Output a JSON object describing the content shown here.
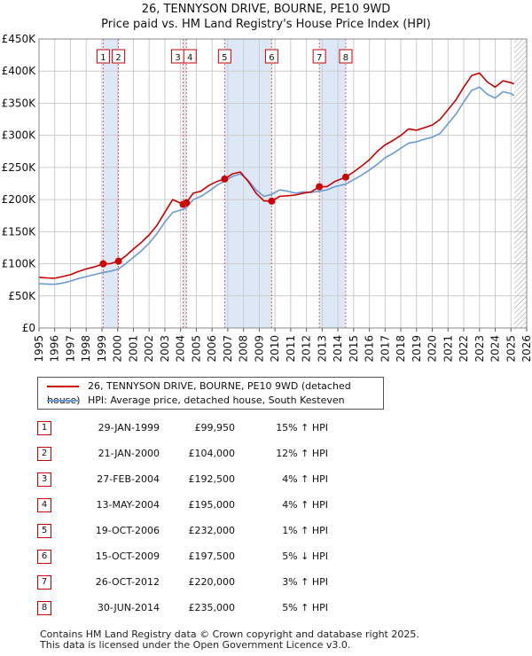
{
  "title_line1": "26, TENNYSON DRIVE, BOURNE, PE10 9WD",
  "title_line2": "Price paid vs. HM Land Registry's House Price Index (HPI)",
  "chart_data": {
    "type": "line",
    "yticks": [
      "£0",
      "£50K",
      "£100K",
      "£150K",
      "£200K",
      "£250K",
      "£300K",
      "£350K",
      "£400K",
      "£450K"
    ],
    "xticks": [
      "1995",
      "1996",
      "1997",
      "1998",
      "1999",
      "2000",
      "2001",
      "2002",
      "2003",
      "2004",
      "2005",
      "2006",
      "2007",
      "2008",
      "2009",
      "2010",
      "2011",
      "2012",
      "2013",
      "2014",
      "2015",
      "2016",
      "2017",
      "2018",
      "2019",
      "2020",
      "2021",
      "2022",
      "2023",
      "2024",
      "2025",
      "2026"
    ],
    "xlim": [
      1995,
      2026
    ],
    "ylim": [
      0,
      450000
    ],
    "colors": {
      "property": "#cc0000",
      "hpi": "#6a9bd4",
      "shade": "#dde8f7",
      "grid": "#cccccc"
    },
    "series": [
      {
        "name": "26, TENNYSON DRIVE, BOURNE, PE10 9WD (detached house)",
        "points": [
          [
            1995.0,
            79000
          ],
          [
            1995.5,
            78000
          ],
          [
            1996.0,
            77500
          ],
          [
            1996.5,
            80000
          ],
          [
            1997.0,
            83000
          ],
          [
            1997.5,
            88000
          ],
          [
            1998.0,
            92000
          ],
          [
            1998.5,
            95000
          ],
          [
            1999.08,
            99950
          ],
          [
            1999.5,
            100000
          ],
          [
            2000.05,
            104000
          ],
          [
            2000.5,
            112000
          ],
          [
            2001.0,
            123000
          ],
          [
            2001.5,
            133000
          ],
          [
            2002.0,
            145000
          ],
          [
            2002.5,
            160000
          ],
          [
            2003.0,
            180000
          ],
          [
            2003.5,
            200000
          ],
          [
            2004.16,
            192500
          ],
          [
            2004.37,
            195000
          ],
          [
            2004.8,
            210000
          ],
          [
            2005.3,
            213000
          ],
          [
            2005.8,
            222000
          ],
          [
            2006.3,
            228000
          ],
          [
            2006.8,
            232000
          ],
          [
            2007.3,
            240000
          ],
          [
            2007.8,
            243000
          ],
          [
            2008.3,
            228000
          ],
          [
            2008.8,
            210000
          ],
          [
            2009.3,
            198000
          ],
          [
            2009.79,
            197500
          ],
          [
            2010.3,
            205000
          ],
          [
            2010.8,
            206000
          ],
          [
            2011.3,
            207000
          ],
          [
            2011.8,
            210000
          ],
          [
            2012.3,
            212000
          ],
          [
            2012.82,
            220000
          ],
          [
            2013.3,
            220000
          ],
          [
            2013.8,
            228000
          ],
          [
            2014.5,
            235000
          ],
          [
            2015.0,
            243000
          ],
          [
            2015.5,
            252000
          ],
          [
            2016.0,
            262000
          ],
          [
            2016.5,
            275000
          ],
          [
            2017.0,
            285000
          ],
          [
            2017.5,
            292000
          ],
          [
            2018.0,
            300000
          ],
          [
            2018.5,
            310000
          ],
          [
            2019.0,
            308000
          ],
          [
            2019.5,
            312000
          ],
          [
            2020.0,
            316000
          ],
          [
            2020.5,
            325000
          ],
          [
            2021.0,
            340000
          ],
          [
            2021.5,
            355000
          ],
          [
            2022.0,
            375000
          ],
          [
            2022.5,
            393000
          ],
          [
            2023.0,
            397000
          ],
          [
            2023.5,
            383000
          ],
          [
            2024.0,
            375000
          ],
          [
            2024.5,
            385000
          ],
          [
            2025.0,
            382000
          ],
          [
            2025.2,
            380000
          ]
        ]
      },
      {
        "name": "HPI: Average price, detached house, South Kesteven",
        "points": [
          [
            1995.0,
            69000
          ],
          [
            1995.5,
            68500
          ],
          [
            1996.0,
            68000
          ],
          [
            1996.5,
            70000
          ],
          [
            1997.0,
            73000
          ],
          [
            1997.5,
            77000
          ],
          [
            1998.0,
            80000
          ],
          [
            1998.5,
            83000
          ],
          [
            1999.08,
            86500
          ],
          [
            1999.5,
            88000
          ],
          [
            2000.05,
            92000
          ],
          [
            2000.5,
            100000
          ],
          [
            2001.0,
            110000
          ],
          [
            2001.5,
            120000
          ],
          [
            2002.0,
            132000
          ],
          [
            2002.5,
            147000
          ],
          [
            2003.0,
            165000
          ],
          [
            2003.5,
            180000
          ],
          [
            2004.16,
            185000
          ],
          [
            2004.37,
            187000
          ],
          [
            2004.8,
            200000
          ],
          [
            2005.3,
            205000
          ],
          [
            2005.8,
            213000
          ],
          [
            2006.3,
            222000
          ],
          [
            2006.8,
            229000
          ],
          [
            2007.3,
            236000
          ],
          [
            2007.8,
            240000
          ],
          [
            2008.3,
            230000
          ],
          [
            2008.8,
            215000
          ],
          [
            2009.3,
            205000
          ],
          [
            2009.79,
            208000
          ],
          [
            2010.3,
            215000
          ],
          [
            2010.8,
            213000
          ],
          [
            2011.3,
            210000
          ],
          [
            2011.8,
            212000
          ],
          [
            2012.3,
            211000
          ],
          [
            2012.82,
            213000
          ],
          [
            2013.3,
            215000
          ],
          [
            2013.8,
            220000
          ],
          [
            2014.5,
            224000
          ],
          [
            2015.0,
            231000
          ],
          [
            2015.5,
            238000
          ],
          [
            2016.0,
            246000
          ],
          [
            2016.5,
            255000
          ],
          [
            2017.0,
            265000
          ],
          [
            2017.5,
            272000
          ],
          [
            2018.0,
            280000
          ],
          [
            2018.5,
            288000
          ],
          [
            2019.0,
            290000
          ],
          [
            2019.5,
            294000
          ],
          [
            2020.0,
            297000
          ],
          [
            2020.5,
            303000
          ],
          [
            2021.0,
            318000
          ],
          [
            2021.5,
            333000
          ],
          [
            2022.0,
            352000
          ],
          [
            2022.5,
            370000
          ],
          [
            2023.0,
            375000
          ],
          [
            2023.5,
            364000
          ],
          [
            2024.0,
            358000
          ],
          [
            2024.5,
            368000
          ],
          [
            2025.0,
            365000
          ],
          [
            2025.2,
            362000
          ]
        ]
      }
    ],
    "sales": [
      {
        "n": "1",
        "x": 1999.08,
        "price": 99950
      },
      {
        "n": "2",
        "x": 2000.05,
        "price": 104000
      },
      {
        "n": "3",
        "x": 2004.16,
        "price": 192500
      },
      {
        "n": "4",
        "x": 2004.37,
        "price": 195000
      },
      {
        "n": "5",
        "x": 2006.8,
        "price": 232000
      },
      {
        "n": "6",
        "x": 2009.79,
        "price": 197500
      },
      {
        "n": "7",
        "x": 2012.82,
        "price": 220000
      },
      {
        "n": "8",
        "x": 2014.5,
        "price": 235000
      }
    ],
    "shaded_ranges": [
      [
        1999.08,
        2000.05
      ],
      [
        2004.16,
        2004.37
      ],
      [
        2006.8,
        2009.79
      ],
      [
        2012.82,
        2014.5
      ]
    ],
    "hatched_from": 2025.2
  },
  "legend": {
    "property_label": "26, TENNYSON DRIVE, BOURNE, PE10 9WD (detached house)",
    "hpi_label": "HPI: Average price, detached house, South Kesteven"
  },
  "sales_table": [
    {
      "n": "1",
      "date": "29-JAN-1999",
      "price": "£99,950",
      "hpi": "15% ↑ HPI"
    },
    {
      "n": "2",
      "date": "21-JAN-2000",
      "price": "£104,000",
      "hpi": "12% ↑ HPI"
    },
    {
      "n": "3",
      "date": "27-FEB-2004",
      "price": "£192,500",
      "hpi": "4% ↑ HPI"
    },
    {
      "n": "4",
      "date": "13-MAY-2004",
      "price": "£195,000",
      "hpi": "4% ↑ HPI"
    },
    {
      "n": "5",
      "date": "19-OCT-2006",
      "price": "£232,000",
      "hpi": "1% ↑ HPI"
    },
    {
      "n": "6",
      "date": "15-OCT-2009",
      "price": "£197,500",
      "hpi": "5% ↓ HPI"
    },
    {
      "n": "7",
      "date": "26-OCT-2012",
      "price": "£220,000",
      "hpi": "3% ↑ HPI"
    },
    {
      "n": "8",
      "date": "30-JUN-2014",
      "price": "£235,000",
      "hpi": "5% ↑ HPI"
    }
  ],
  "footer_line1": "Contains HM Land Registry data © Crown copyright and database right 2025.",
  "footer_line2": "This data is licensed under the Open Government Licence v3.0."
}
